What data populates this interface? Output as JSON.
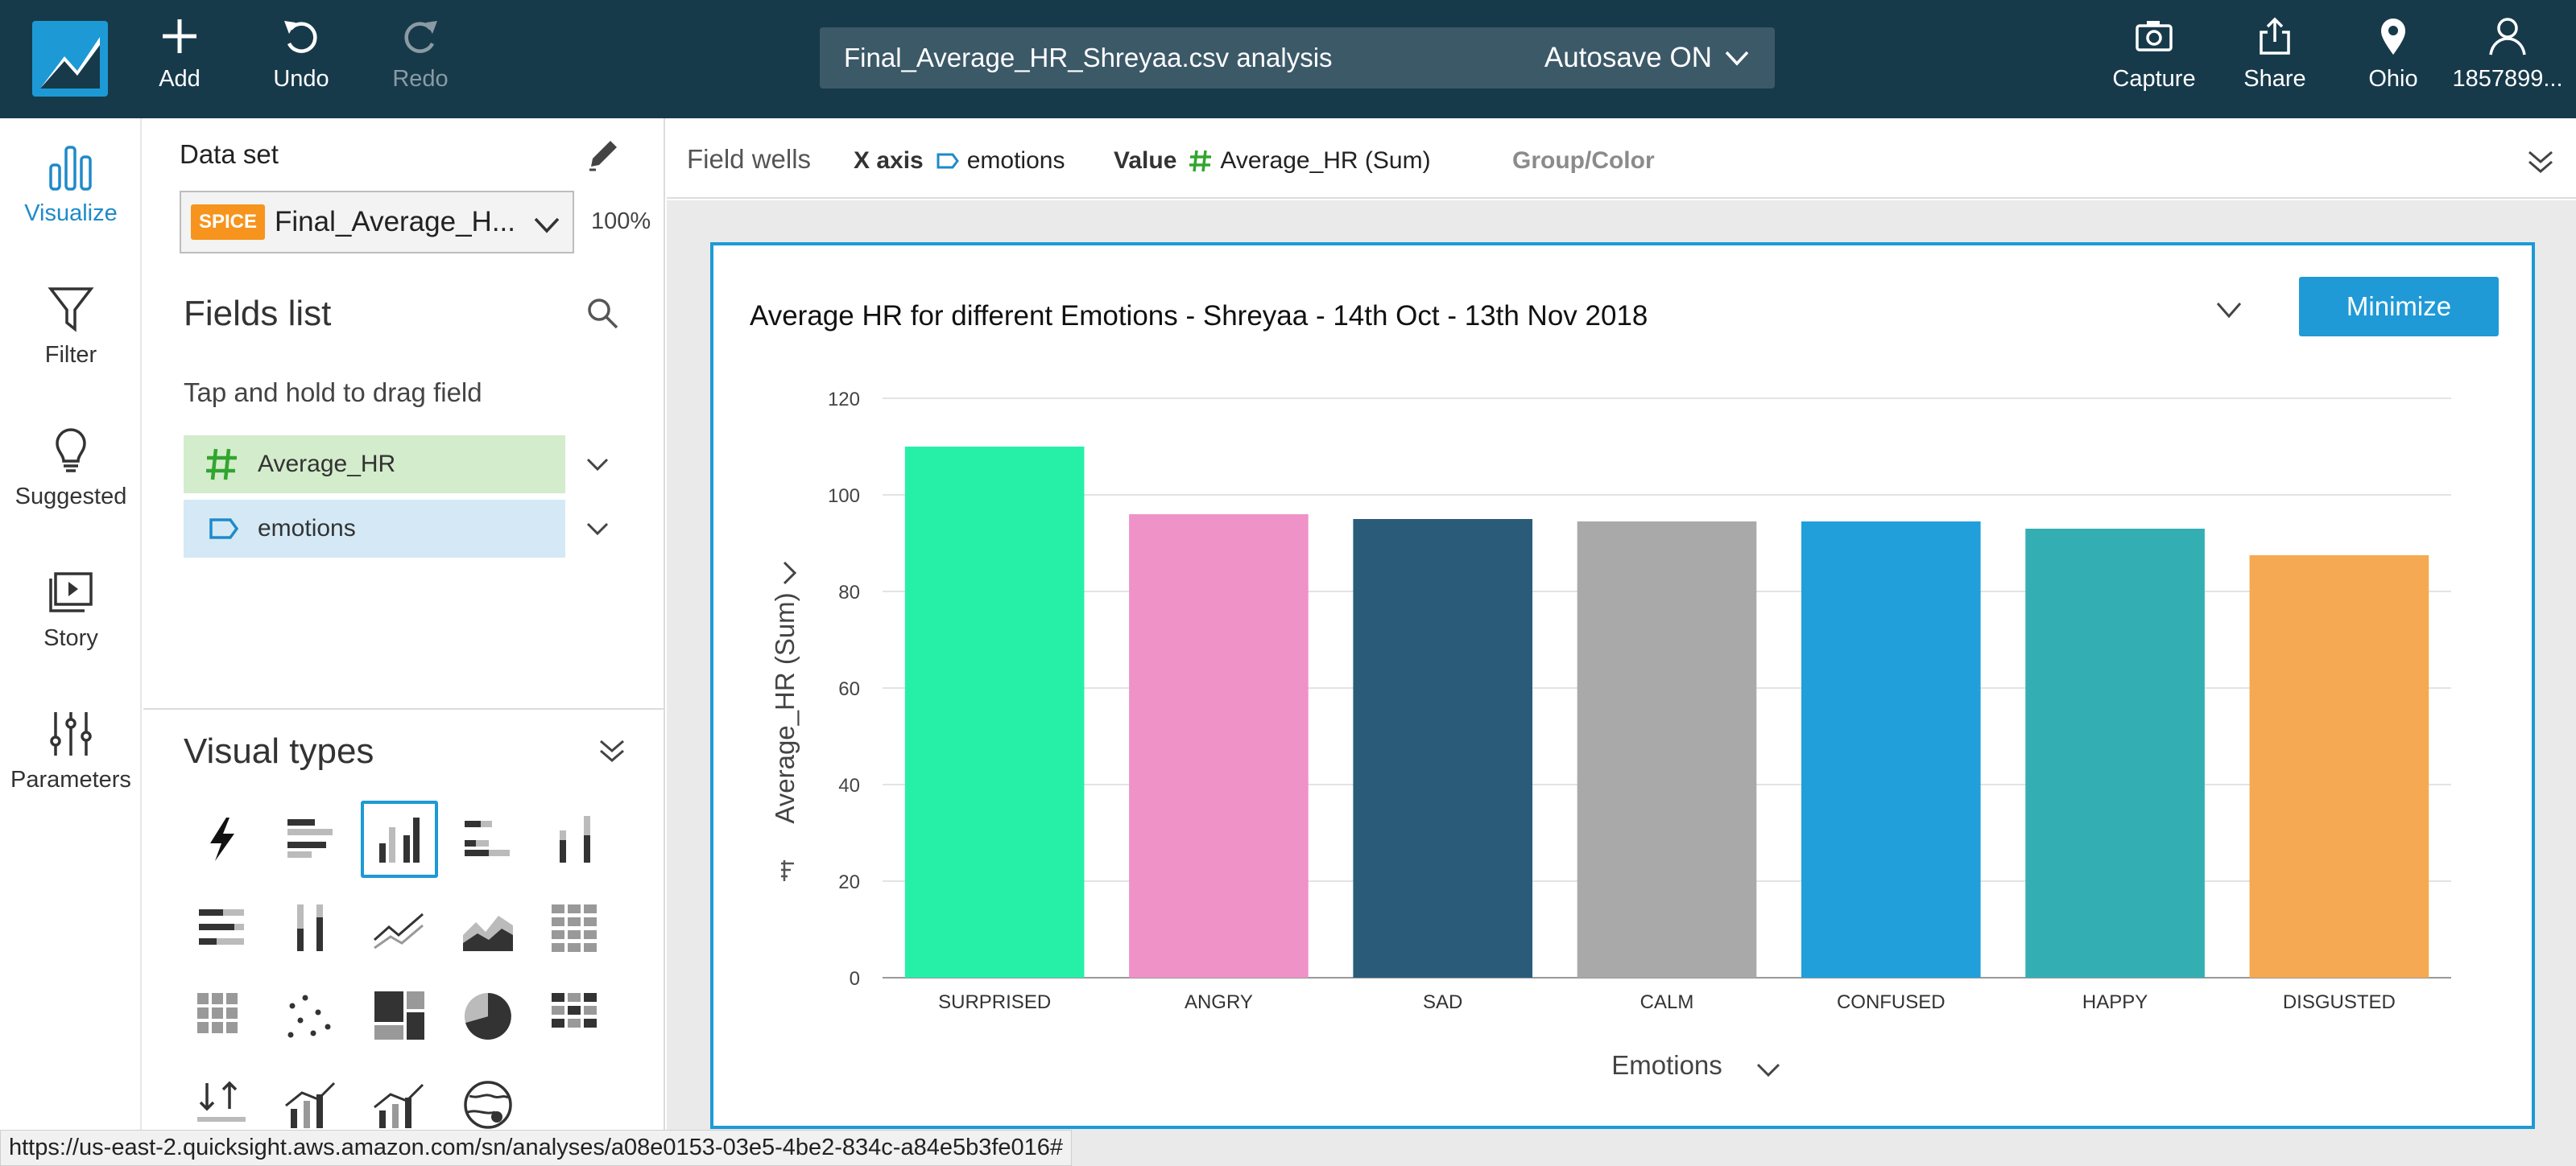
{
  "toolbar": {
    "add_label": "Add",
    "undo_label": "Undo",
    "redo_label": "Redo",
    "analysis_title": "Final_Average_HR_Shreyaa.csv analysis",
    "autosave_label": "Autosave ON",
    "capture_label": "Capture",
    "share_label": "Share",
    "region_label": "Ohio",
    "account_label": "1857899..."
  },
  "leftnav": {
    "items": [
      {
        "label": "Visualize",
        "icon": "bar-chart-icon",
        "active": true
      },
      {
        "label": "Filter",
        "icon": "filter-icon"
      },
      {
        "label": "Suggested",
        "icon": "lightbulb-icon"
      },
      {
        "label": "Story",
        "icon": "story-icon"
      },
      {
        "label": "Parameters",
        "icon": "sliders-icon"
      }
    ]
  },
  "dataset": {
    "label": "Data set",
    "badge": "SPICE",
    "name": "Final_Average_H...",
    "percent": "100%"
  },
  "fields": {
    "title": "Fields list",
    "hint": "Tap and hold to drag field",
    "items": [
      {
        "label": "Average_HR",
        "kind": "measure",
        "icon": "hash-icon"
      },
      {
        "label": "emotions",
        "kind": "dimension",
        "icon": "tag-icon"
      }
    ]
  },
  "visual_types": {
    "title": "Visual types"
  },
  "field_wells": {
    "label": "Field wells",
    "x_axis_label": "X axis",
    "x_axis_field": "emotions",
    "value_label": "Value",
    "value_field": "Average_HR (Sum)",
    "group_label": "Group/Color"
  },
  "visual": {
    "minimize_label": "Minimize"
  },
  "chart_data": {
    "type": "bar",
    "title": "Average HR for different Emotions - Shreyaa - 14th Oct - 13th Nov 2018",
    "xlabel": "Emotions",
    "ylabel": "Average_HR (Sum)",
    "categories": [
      "SURPRISED",
      "ANGRY",
      "SAD",
      "CALM",
      "CONFUSED",
      "HAPPY",
      "DISGUSTED"
    ],
    "values": [
      110,
      96,
      95,
      94.5,
      94.5,
      93,
      87.5
    ],
    "colors": [
      "#26f0a8",
      "#ef92c8",
      "#2a5c7a",
      "#a9a9a9",
      "#209fdb",
      "#33afb4",
      "#f5a953"
    ],
    "ylim": [
      0,
      120
    ],
    "yticks": [
      0,
      20,
      40,
      60,
      80,
      100,
      120
    ],
    "grid": true,
    "legend": "none"
  },
  "status_url": "https://us-east-2.quicksight.aws.amazon.com/sn/analyses/a08e0153-03e5-4be2-834c-a84e5b3fe016#"
}
